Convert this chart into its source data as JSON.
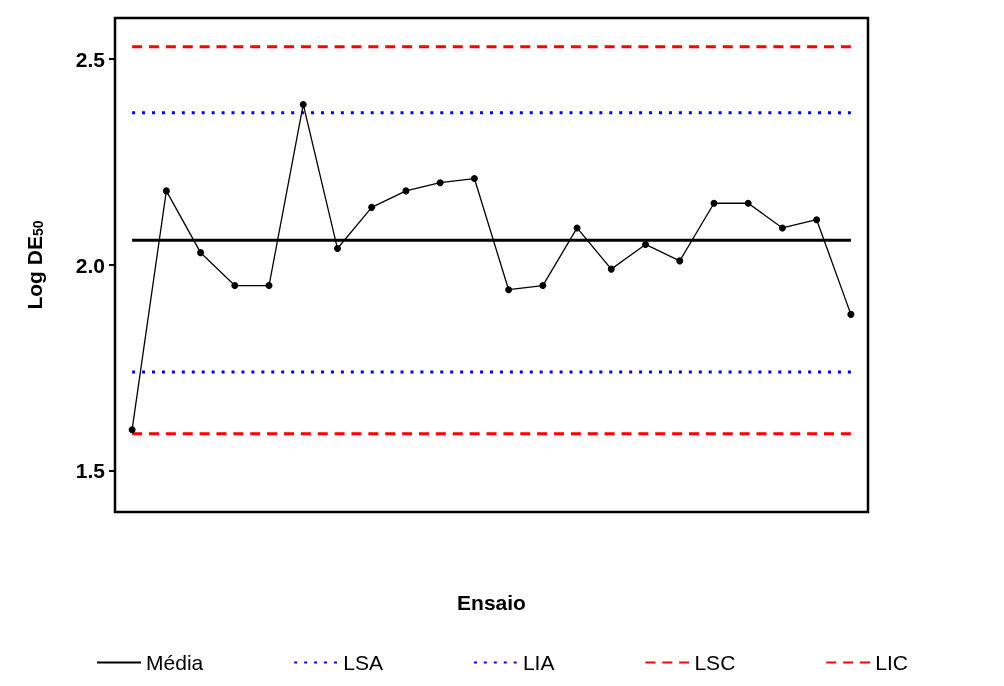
{
  "chart_data": {
    "type": "line",
    "xlabel": "Ensaio",
    "ylabel": "Log DE$_{50}$",
    "categories": [
      null,
      null,
      null,
      null,
      null,
      null,
      null,
      null,
      null,
      null,
      null,
      null,
      null,
      null,
      null,
      null,
      null,
      null,
      null,
      null,
      null,
      null
    ],
    "series": [
      {
        "color": "#000000",
        "marker": "circle",
        "values": [
          1.6,
          2.18,
          2.03,
          1.95,
          1.95,
          2.39,
          2.04,
          2.14,
          2.18,
          2.2,
          2.21,
          1.94,
          1.95,
          2.09,
          1.99,
          2.05,
          2.01,
          2.15,
          2.15,
          2.09,
          2.11,
          1.88
        ]
      },
      {
        "name": "Média",
        "color": "#000000",
        "line_style": "solid",
        "values": [
          2.06,
          2.06,
          2.06,
          2.06,
          2.06,
          2.06,
          2.06,
          2.06,
          2.06,
          2.06,
          2.06,
          2.06,
          2.06,
          2.06,
          2.06,
          2.06,
          2.06,
          2.06,
          2.06,
          2.06,
          2.06,
          2.06
        ]
      },
      {
        "name": "LSA",
        "color": "#0000ff",
        "line_style": "dotted",
        "values": [
          2.37,
          2.37,
          2.37,
          2.37,
          2.37,
          2.37,
          2.37,
          2.37,
          2.37,
          2.37,
          2.37,
          2.37,
          2.37,
          2.37,
          2.37,
          2.37,
          2.37,
          2.37,
          2.37,
          2.37,
          2.37,
          2.37
        ]
      },
      {
        "name": "LIA",
        "color": "#0000ff",
        "line_style": "dotted",
        "values": [
          1.74,
          1.74,
          1.74,
          1.74,
          1.74,
          1.74,
          1.74,
          1.74,
          1.74,
          1.74,
          1.74,
          1.74,
          1.74,
          1.74,
          1.74,
          1.74,
          1.74,
          1.74,
          1.74,
          1.74,
          1.74,
          1.74
        ]
      },
      {
        "name": "LSC",
        "color": "#ff0000",
        "line_style": "dashed",
        "values": [
          2.53,
          2.53,
          2.53,
          2.53,
          2.53,
          2.53,
          2.53,
          2.53,
          2.53,
          2.53,
          2.53,
          2.53,
          2.53,
          2.53,
          2.53,
          2.53,
          2.53,
          2.53,
          2.53,
          2.53,
          2.53,
          2.53
        ]
      },
      {
        "name": "LIC",
        "color": "#ff0000",
        "line_style": "dashed",
        "values": [
          1.59,
          1.59,
          1.59,
          1.59,
          1.59,
          1.59,
          1.59,
          1.59,
          1.59,
          1.59,
          1.59,
          1.59,
          1.59,
          1.59,
          1.59,
          1.59,
          1.59,
          1.59,
          1.59,
          1.59,
          1.59,
          1.59
        ]
      }
    ],
    "ylim": [
      1.4,
      2.6
    ],
    "yticks": [
      {
        "value": 1.5,
        "label": "1.5"
      },
      {
        "value": 2.0,
        "label": "2.0"
      },
      {
        "value": 2.5,
        "label": "2.5"
      }
    ],
    "tick_labels": "y",
    "grid": false,
    "legend": "bottom"
  }
}
